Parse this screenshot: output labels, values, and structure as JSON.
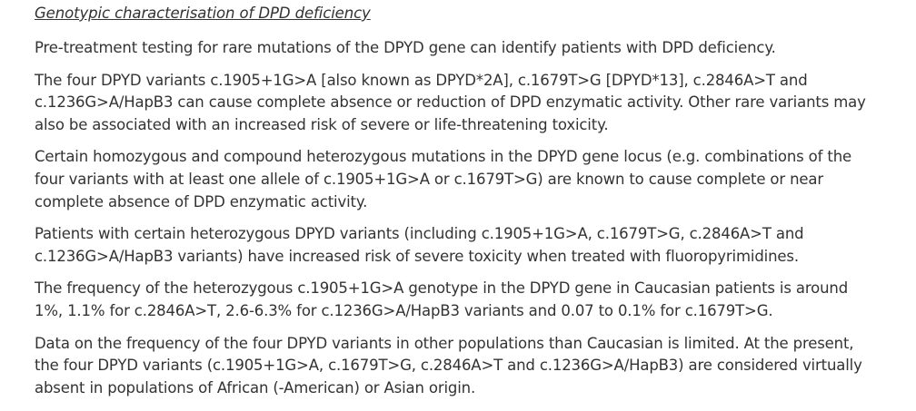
{
  "document": {
    "heading": "Genotypic characterisation of DPD deficiency",
    "paragraphs": [
      "Pre-treatment testing for rare mutations of the DPYD gene can identify patients with DPD deficiency.",
      "The four DPYD variants c.1905+1G>A [also known as DPYD*2A], c.1679T>G [DPYD*13], c.2846A>T and c.1236G>A/HapB3 can cause complete absence or reduction of DPD enzymatic activity. Other rare variants may also be associated with an increased risk of severe or life-threatening toxicity.",
      "Certain homozygous and compound heterozygous mutations in the DPYD gene locus (e.g. combinations of the four variants with at least one allele of c.1905+1G>A or c.1679T>G) are known to cause complete or near complete absence of DPD enzymatic activity.",
      "Patients with certain heterozygous DPYD variants (including c.1905+1G>A, c.1679T>G, c.2846A>T and c.1236G>A/HapB3 variants) have increased risk of severe toxicity when treated with fluoropyrimidines.",
      "The frequency of the heterozygous c.1905+1G>A genotype in the DPYD gene in Caucasian patients is around 1%, 1.1% for c.2846A>T, 2.6-6.3% for c.1236G>A/HapB3 variants and 0.07 to 0.1% for c.1679T>G.",
      "Data on the frequency of the four DPYD variants in other populations than Caucasian is limited. At the present, the four DPYD variants (c.1905+1G>A, c.1679T>G, c.2846A>T and c.1236G>A/HapB3) are considered virtually absent in populations of African (-American) or Asian origin."
    ]
  },
  "colors": {
    "text": "#333333",
    "background": "#ffffff"
  }
}
